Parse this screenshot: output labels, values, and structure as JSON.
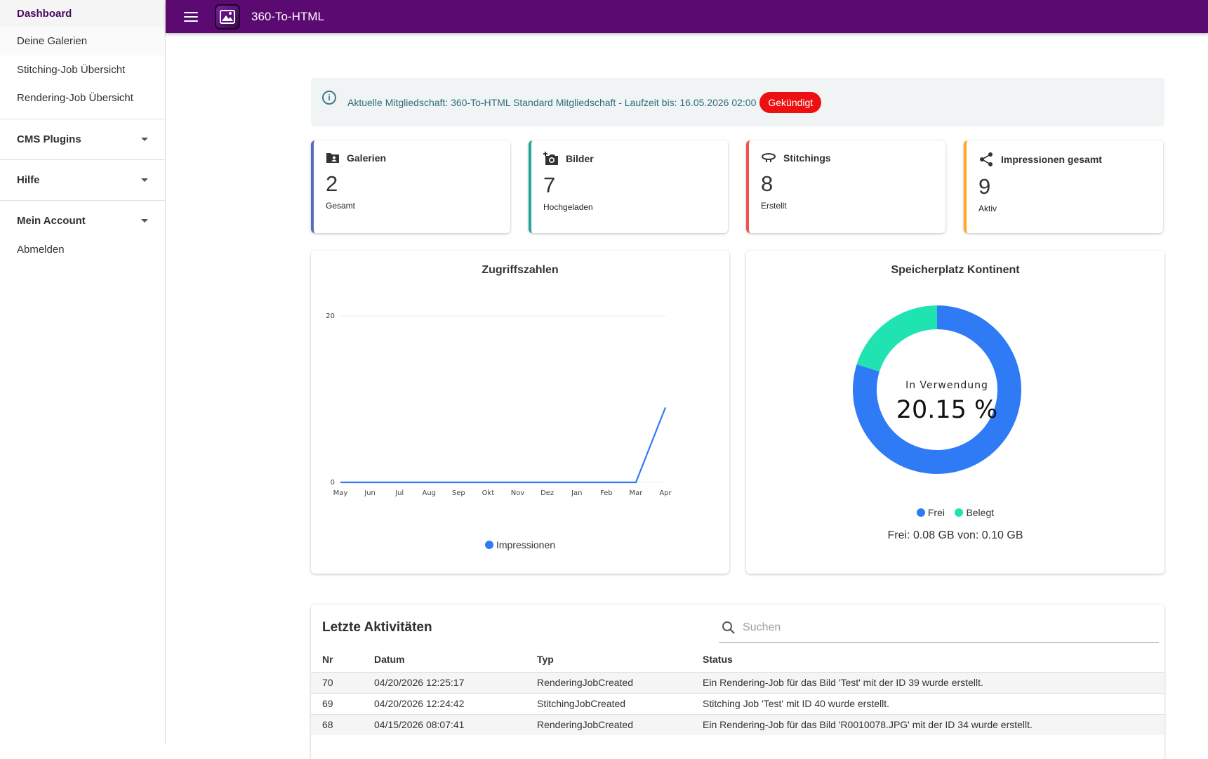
{
  "sidebar": {
    "items": [
      {
        "label": "Dashboard"
      },
      {
        "label": "Deine Galerien"
      },
      {
        "label": "Stitching-Job Übersicht"
      },
      {
        "label": "Rendering-Job Übersicht"
      }
    ],
    "groups": [
      {
        "label": "CMS Plugins"
      },
      {
        "label": "Hilfe"
      },
      {
        "label": "Mein Account"
      }
    ],
    "logout": "Abmelden"
  },
  "topbar": {
    "title": "360-To-HTML"
  },
  "alert": {
    "text": "Aktuelle Mitgliedschaft: 360-To-HTML Standard Mitgliedschaft - Laufzeit bis: 16.05.2026 02:00",
    "badge": "Gekündigt"
  },
  "stats": [
    {
      "title": "Galerien",
      "value": "2",
      "sub": "Gesamt",
      "icon": "gallery-folder-icon",
      "color": "#5c6bc0"
    },
    {
      "title": "Bilder",
      "value": "7",
      "sub": "Hochgeladen",
      "icon": "add-photo-icon",
      "color": "#26a69a"
    },
    {
      "title": "Stitchings",
      "value": "8",
      "sub": "Erstellt",
      "icon": "panorama-icon",
      "color": "#ef5350"
    },
    {
      "title": "Impressionen gesamt",
      "value": "9",
      "sub": "Aktiv",
      "icon": "share-icon",
      "color": "#ffa726"
    }
  ],
  "access_chart": {
    "title": "Zugriffszahlen",
    "legend": "Impressionen",
    "color": "#2f7bf5"
  },
  "storage_chart": {
    "title": "Speicherplatz Kontinent",
    "center_label": "In Verwendung",
    "center_value": "20.15 %",
    "legend_free": "Frei",
    "legend_used": "Belegt",
    "color_free": "#2f7bf5",
    "color_used": "#20e3b2",
    "summary": "Frei: 0.08 GB von: 0.10 GB"
  },
  "chart_data": [
    {
      "type": "line",
      "title": "Zugriffszahlen",
      "x": [
        "May",
        "Jun",
        "Jul",
        "Aug",
        "Sep",
        "Okt",
        "Nov",
        "Dez",
        "Jan",
        "Feb",
        "Mar",
        "Apr"
      ],
      "series": [
        {
          "name": "Impressionen",
          "values": [
            0,
            0,
            0,
            0,
            0,
            0,
            0,
            0,
            0,
            0,
            0,
            9
          ]
        }
      ],
      "ylim": [
        0,
        20
      ],
      "yticks": [
        "0",
        "20"
      ]
    },
    {
      "type": "pie",
      "title": "Speicherplatz Kontinent",
      "labels": [
        "Frei",
        "Belegt"
      ],
      "values": [
        79.85,
        20.15
      ]
    }
  ],
  "activity": {
    "title": "Letzte Aktivitäten",
    "search_placeholder": "Suchen",
    "columns": [
      "Nr",
      "Datum",
      "Typ",
      "Status"
    ],
    "rows": [
      [
        "70",
        "04/20/2026 12:25:17",
        "RenderingJobCreated",
        "Ein Rendering-Job für das Bild 'Test' mit der ID 39 wurde erstellt."
      ],
      [
        "69",
        "04/20/2026 12:24:42",
        "StitchingJobCreated",
        "Stitching Job 'Test' mit ID 40 wurde erstellt."
      ],
      [
        "68",
        "04/15/2026 08:07:41",
        "RenderingJobCreated",
        "Ein Rendering-Job für das Bild 'R0010078.JPG' mit der ID 34 wurde erstellt."
      ]
    ]
  }
}
